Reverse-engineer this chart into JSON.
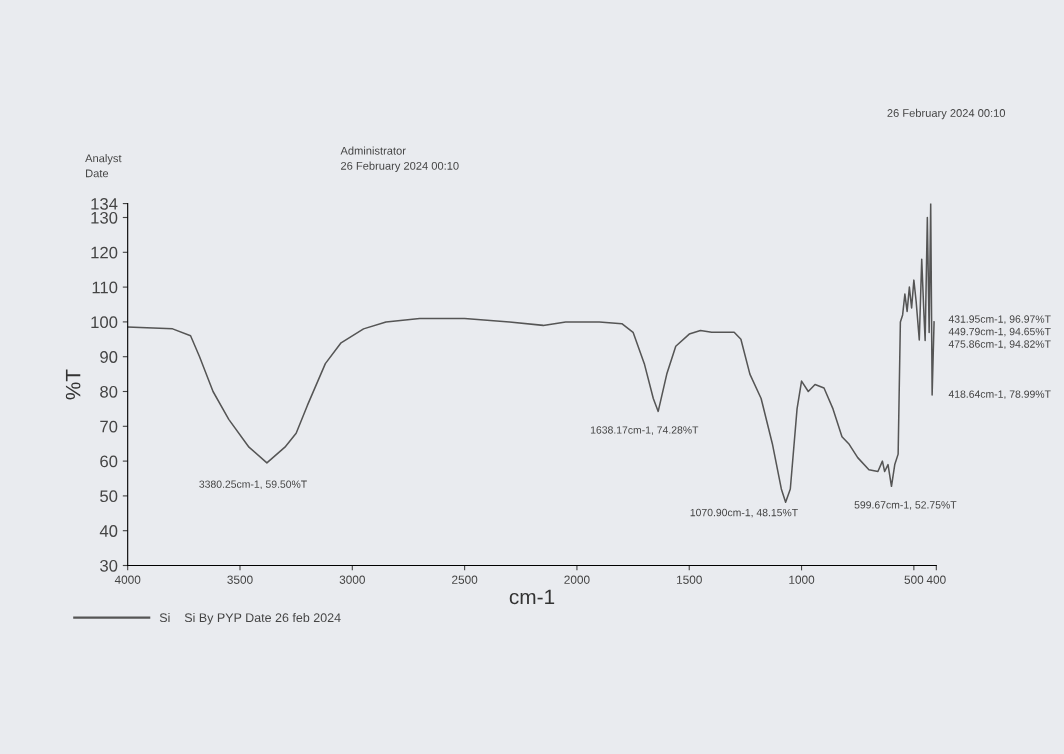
{
  "chart_data": {
    "type": "line",
    "xlabel": "cm-1",
    "ylabel": "%T",
    "xlim": [
      4000,
      400
    ],
    "ylim": [
      30,
      134
    ],
    "xticks": [
      4000,
      3500,
      3000,
      2500,
      2000,
      1500,
      1000,
      500,
      400
    ],
    "yticks": [
      30,
      40,
      50,
      60,
      70,
      80,
      90,
      100,
      110,
      120,
      130,
      134
    ],
    "grid": false,
    "legend": "bottom left",
    "marker": "none",
    "line_style": "solid",
    "series": [
      {
        "name": "Si    Si By PYP Date 26 feb 2024",
        "color": "#555555",
        "x": [
          4000,
          3800,
          3720,
          3680,
          3620,
          3550,
          3460,
          3380.25,
          3300,
          3250,
          3200,
          3120,
          3050,
          2950,
          2850,
          2700,
          2500,
          2300,
          2150,
          2050,
          1900,
          1800,
          1750,
          1700,
          1660,
          1638.17,
          1600,
          1560,
          1500,
          1450,
          1400,
          1300,
          1270,
          1230,
          1180,
          1130,
          1090,
          1070.9,
          1050,
          1020,
          1000,
          970,
          940,
          900,
          860,
          820,
          790,
          750,
          700,
          660,
          640,
          630,
          615,
          599.67,
          585,
          570,
          560,
          550,
          540,
          530,
          520,
          510,
          500,
          490,
          475.86,
          465,
          455,
          449.79,
          440,
          431.95,
          425,
          418.64,
          410
        ],
        "values": [
          98.5,
          98,
          96,
          90,
          80,
          72,
          64,
          59.5,
          64,
          68,
          76,
          88,
          94,
          98,
          100,
          101,
          101,
          100,
          99,
          100,
          100,
          99.5,
          97,
          88,
          78,
          74.28,
          85,
          93,
          96.5,
          97.5,
          97,
          97,
          95,
          85,
          78,
          65,
          52,
          48.15,
          52,
          75,
          83,
          80,
          82,
          81,
          75,
          67,
          65,
          61,
          57.5,
          57,
          60,
          57,
          59,
          52.75,
          59,
          62,
          100,
          102,
          108,
          103,
          110,
          104,
          112,
          106,
          94.82,
          118,
          102,
          94.65,
          130,
          96.97,
          134,
          78.99,
          100
        ]
      }
    ],
    "annotations": [
      "Analyst",
      "Date",
      "Administrator",
      "26 February 2024 00:10",
      "26 February 2024 00:10",
      {
        "text": "3380.25cm-1, 59.50%T",
        "x": 3380.25,
        "y": 59.5
      },
      {
        "text": "1638.17cm-1, 74.28%T",
        "x": 1638.17,
        "y": 74.28
      },
      {
        "text": "1070.90cm-1, 48.15%T",
        "x": 1070.9,
        "y": 48.15
      },
      {
        "text": "599.67cm-1, 52.75%T",
        "x": 599.67,
        "y": 52.75
      },
      {
        "text": "431.95cm-1, 96.97%T",
        "x": 431.95,
        "y": 96.97
      },
      {
        "text": "449.79cm-1, 94.65%T",
        "x": 449.79,
        "y": 94.65
      },
      {
        "text": "475.86cm-1, 94.82%T",
        "x": 475.86,
        "y": 94.82
      },
      {
        "text": "418.64cm-1, 78.99%T",
        "x": 418.64,
        "y": 78.99
      }
    ]
  }
}
